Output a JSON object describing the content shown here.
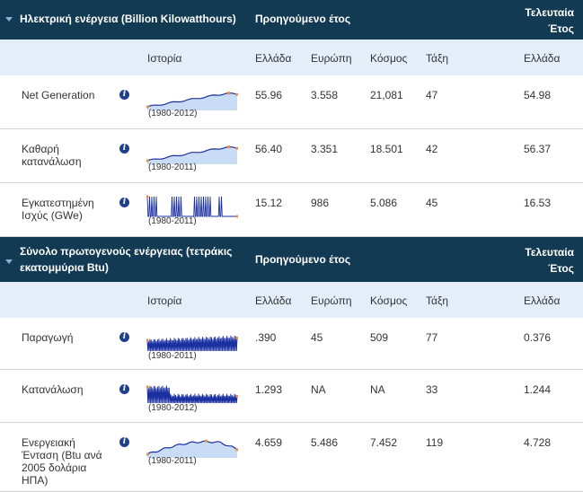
{
  "sections": [
    {
      "title": "Ηλεκτρική ενέργεια (Billion Kilowatthours)",
      "prev_year": "Προηγούμενο έτος",
      "last_year": "Τελευταία Έτος",
      "columns": {
        "history": "Ιστορία",
        "greece": "Ελλάδα",
        "europe": "Ευρώπη",
        "world": "Κόσμος",
        "rank": "Τάξη",
        "greece_last": "Ελλάδα"
      },
      "rows": [
        {
          "label": "Net Generation",
          "range": "(1980-2012)",
          "greece": "55.96",
          "europe": "3.558",
          "world": "21,081",
          "rank": "47",
          "last": "54.98",
          "spark": "rise-fill"
        },
        {
          "label": "Καθαρή κατανάλωση",
          "range": "(1980-2011)",
          "greece": "56.40",
          "europe": "3.351",
          "world": "18.501",
          "rank": "42",
          "last": "56.37",
          "spark": "rise-fill2"
        },
        {
          "label": "Εγκατεστημένη Ισχύς (GWe)",
          "range": "(1980-2011)",
          "greece": "15.12",
          "europe": "986",
          "world": "5.086",
          "rank": "45",
          "last": "16.53",
          "spark": "bursts"
        }
      ]
    },
    {
      "title": "Σύνολο πρωτογενούς ενέργειας (τετράκις εκατομμύρια Btu)",
      "prev_year": "Προηγούμενο έτος",
      "last_year": "Τελευταία Έτος",
      "columns": {
        "history": "Ιστορία",
        "greece": "Ελλάδα",
        "europe": "Ευρώπη",
        "world": "Κόσμος",
        "rank": "Τάξη",
        "greece_last": "Ελλάδα"
      },
      "rows": [
        {
          "label": "Παραγωγή",
          "range": "(1980-2011)",
          "greece": ".390",
          "europe": "45",
          "world": "509",
          "rank": "77",
          "last": "0.376",
          "spark": "dense"
        },
        {
          "label": "Κατανάλωση",
          "range": "(1980-2012)",
          "greece": "1.293",
          "europe": "NA",
          "world": "NA",
          "rank": "33",
          "last": "1.244",
          "spark": "dense-drop"
        },
        {
          "label": "Ενεργειακή Ένταση (Btu ανά 2005 δολάρια ΗΠΑ)",
          "range": "(1980-2011)",
          "greece": "4.659",
          "europe": "5.486",
          "world": "7.452",
          "rank": "119",
          "last": "4.728",
          "spark": "hump"
        }
      ]
    }
  ],
  "colors": {
    "header_bg": "#123a52",
    "subheader_bg": "#e3eef8",
    "spark_line": "#1a2fa0",
    "spark_fill": "#c9dcf5",
    "spark_dot": "#f08a3c"
  }
}
